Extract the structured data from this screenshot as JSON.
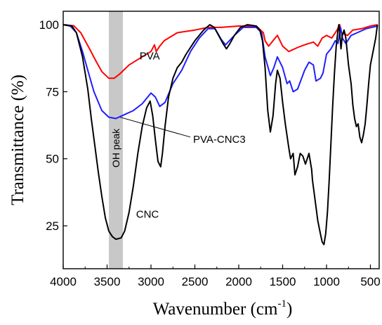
{
  "chart_data": {
    "type": "line",
    "title": "",
    "xlabel_main": "Wavenumber (cm",
    "xlabel_sup": "-1",
    "xlabel_tail": ")",
    "ylabel": "Transmittance (%)",
    "x_reversed": true,
    "xlim": [
      4000,
      400
    ],
    "ylim": [
      9,
      105
    ],
    "xticks": [
      4000,
      3500,
      3000,
      2500,
      2000,
      1500,
      1000,
      500
    ],
    "yticks": [
      25,
      50,
      75,
      100
    ],
    "grid": false,
    "legend": "none (series named by on-plot labels)",
    "highlight_band": {
      "x0": 3480,
      "x1": 3320,
      "color": "#c8c8c8",
      "label": "OH peak"
    },
    "annotations": [
      {
        "text": "PVA",
        "x": 3130,
        "y": 87
      },
      {
        "text": "PVA-CNC3",
        "x": 2520,
        "y": 56,
        "arrow_to": [
          3350,
          66
        ]
      },
      {
        "text": "CNC",
        "x": 3170,
        "y": 28
      }
    ],
    "series": [
      {
        "name": "PVA",
        "color": "#ff0000",
        "points": [
          [
            4000,
            100
          ],
          [
            3880,
            99.6
          ],
          [
            3800,
            97
          ],
          [
            3700,
            91
          ],
          [
            3620,
            86
          ],
          [
            3560,
            82.5
          ],
          [
            3480,
            80
          ],
          [
            3420,
            80
          ],
          [
            3360,
            81.5
          ],
          [
            3250,
            85
          ],
          [
            3100,
            88
          ],
          [
            3000,
            90
          ],
          [
            2960,
            92.5
          ],
          [
            2940,
            90
          ],
          [
            2900,
            92
          ],
          [
            2850,
            94
          ],
          [
            2700,
            97
          ],
          [
            2500,
            98
          ],
          [
            2350,
            99
          ],
          [
            2200,
            99
          ],
          [
            2000,
            99.5
          ],
          [
            1800,
            99.5
          ],
          [
            1720,
            97
          ],
          [
            1700,
            94
          ],
          [
            1660,
            92
          ],
          [
            1560,
            96
          ],
          [
            1500,
            92
          ],
          [
            1430,
            90
          ],
          [
            1330,
            91.5
          ],
          [
            1250,
            92.5
          ],
          [
            1150,
            93.5
          ],
          [
            1100,
            92
          ],
          [
            1050,
            95
          ],
          [
            1000,
            96
          ],
          [
            940,
            95
          ],
          [
            880,
            98
          ],
          [
            850,
            100
          ],
          [
            830,
            97
          ],
          [
            760,
            96
          ],
          [
            700,
            98
          ],
          [
            600,
            98.5
          ],
          [
            500,
            99.5
          ],
          [
            420,
            100
          ]
        ]
      },
      {
        "name": "PVA-CNC3",
        "color": "#1f1fff",
        "points": [
          [
            4000,
            100
          ],
          [
            3920,
            99.5
          ],
          [
            3850,
            97
          ],
          [
            3780,
            90
          ],
          [
            3720,
            83
          ],
          [
            3650,
            75
          ],
          [
            3560,
            68
          ],
          [
            3480,
            65.5
          ],
          [
            3400,
            65
          ],
          [
            3300,
            66.5
          ],
          [
            3200,
            68
          ],
          [
            3100,
            70.5
          ],
          [
            3000,
            74.5
          ],
          [
            2950,
            73
          ],
          [
            2900,
            69.5
          ],
          [
            2840,
            71
          ],
          [
            2750,
            78
          ],
          [
            2650,
            83
          ],
          [
            2550,
            90
          ],
          [
            2450,
            95
          ],
          [
            2350,
            98.5
          ],
          [
            2270,
            98.5
          ],
          [
            2200,
            94.5
          ],
          [
            2150,
            92.5
          ],
          [
            2050,
            96
          ],
          [
            1950,
            99
          ],
          [
            1800,
            99
          ],
          [
            1740,
            97
          ],
          [
            1700,
            88
          ],
          [
            1640,
            81
          ],
          [
            1600,
            84
          ],
          [
            1560,
            88
          ],
          [
            1500,
            84
          ],
          [
            1450,
            78
          ],
          [
            1420,
            79
          ],
          [
            1380,
            75
          ],
          [
            1330,
            76
          ],
          [
            1250,
            83
          ],
          [
            1200,
            86
          ],
          [
            1150,
            85
          ],
          [
            1120,
            79
          ],
          [
            1070,
            80
          ],
          [
            1040,
            82
          ],
          [
            1000,
            89
          ],
          [
            950,
            91
          ],
          [
            900,
            94
          ],
          [
            870,
            93
          ],
          [
            840,
            99
          ],
          [
            820,
            95
          ],
          [
            780,
            93
          ],
          [
            720,
            96
          ],
          [
            650,
            97
          ],
          [
            550,
            98.5
          ],
          [
            420,
            99.5
          ]
        ]
      },
      {
        "name": "CNC",
        "color": "#000000",
        "points": [
          [
            4000,
            100
          ],
          [
            3900,
            99.5
          ],
          [
            3850,
            97
          ],
          [
            3780,
            88
          ],
          [
            3720,
            76
          ],
          [
            3680,
            65
          ],
          [
            3640,
            55
          ],
          [
            3600,
            45
          ],
          [
            3560,
            36
          ],
          [
            3520,
            28
          ],
          [
            3480,
            23
          ],
          [
            3440,
            21
          ],
          [
            3400,
            20
          ],
          [
            3340,
            20.5
          ],
          [
            3300,
            23
          ],
          [
            3250,
            30
          ],
          [
            3200,
            40
          ],
          [
            3150,
            52
          ],
          [
            3100,
            62
          ],
          [
            3050,
            69
          ],
          [
            3010,
            71.5
          ],
          [
            2980,
            66
          ],
          [
            2950,
            57
          ],
          [
            2920,
            49
          ],
          [
            2890,
            47
          ],
          [
            2870,
            52
          ],
          [
            2840,
            62
          ],
          [
            2800,
            73
          ],
          [
            2750,
            80
          ],
          [
            2700,
            84
          ],
          [
            2650,
            86
          ],
          [
            2600,
            89
          ],
          [
            2500,
            94
          ],
          [
            2400,
            98
          ],
          [
            2330,
            100
          ],
          [
            2280,
            99
          ],
          [
            2230,
            96
          ],
          [
            2180,
            93
          ],
          [
            2140,
            91
          ],
          [
            2100,
            93
          ],
          [
            2050,
            96
          ],
          [
            1980,
            99
          ],
          [
            1900,
            100
          ],
          [
            1800,
            99.5
          ],
          [
            1760,
            98
          ],
          [
            1730,
            94
          ],
          [
            1700,
            84
          ],
          [
            1670,
            68
          ],
          [
            1640,
            60
          ],
          [
            1610,
            66
          ],
          [
            1580,
            78
          ],
          [
            1560,
            83
          ],
          [
            1530,
            80
          ],
          [
            1500,
            71
          ],
          [
            1470,
            63
          ],
          [
            1430,
            54
          ],
          [
            1410,
            50
          ],
          [
            1380,
            52
          ],
          [
            1360,
            44
          ],
          [
            1330,
            47
          ],
          [
            1300,
            52
          ],
          [
            1270,
            51
          ],
          [
            1240,
            48
          ],
          [
            1200,
            52
          ],
          [
            1170,
            46
          ],
          [
            1160,
            42
          ],
          [
            1120,
            32
          ],
          [
            1100,
            27
          ],
          [
            1070,
            22
          ],
          [
            1050,
            19
          ],
          [
            1030,
            18
          ],
          [
            1010,
            22
          ],
          [
            990,
            30
          ],
          [
            970,
            42
          ],
          [
            950,
            56
          ],
          [
            930,
            70
          ],
          [
            910,
            82
          ],
          [
            890,
            92
          ],
          [
            870,
            98
          ],
          [
            860,
            100
          ],
          [
            850,
            97
          ],
          [
            835,
            91
          ],
          [
            820,
            96
          ],
          [
            800,
            98
          ],
          [
            780,
            95
          ],
          [
            750,
            85
          ],
          [
            720,
            78
          ],
          [
            700,
            70
          ],
          [
            680,
            65
          ],
          [
            660,
            62
          ],
          [
            640,
            63
          ],
          [
            620,
            58
          ],
          [
            600,
            56
          ],
          [
            580,
            59
          ],
          [
            560,
            63
          ],
          [
            540,
            70
          ],
          [
            520,
            78
          ],
          [
            500,
            85
          ],
          [
            470,
            90
          ],
          [
            440,
            95
          ],
          [
            420,
            100
          ]
        ]
      }
    ]
  }
}
